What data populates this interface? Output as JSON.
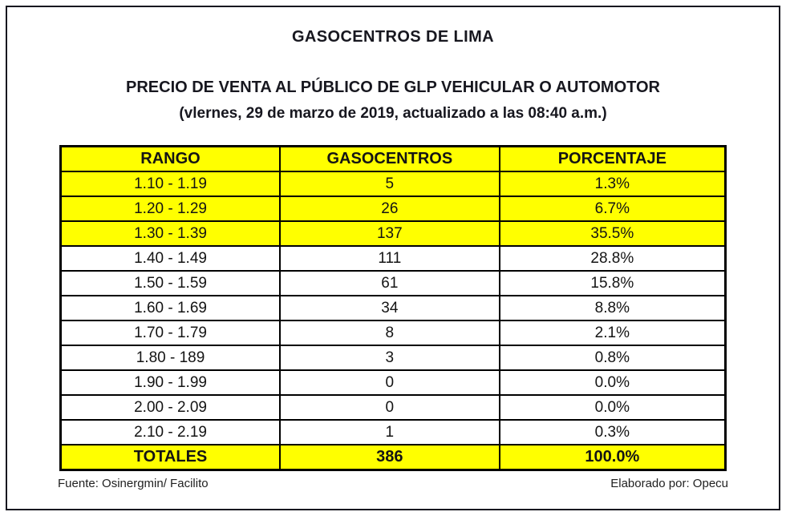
{
  "header": {
    "title": "GASOCENTROS DE LIMA",
    "subtitle": "PRECIO DE VENTA AL PÚBLICO DE GLP VEHICULAR O AUTOMOTOR",
    "date_line": "(vlernes, 29 de marzo de 2019, actualizado a las 08:40 a.m.)"
  },
  "colors": {
    "highlight": "#FFFF00",
    "border": "#000000",
    "text": "#1A1A1A"
  },
  "chart_data": {
    "type": "table",
    "title": "GASOCENTROS DE LIMA",
    "columns": [
      "RANGO",
      "GASOCENTROS",
      "PORCENTAJE"
    ],
    "rows": [
      {
        "cells": [
          "1.10 - 1.19",
          "5",
          "1.3%"
        ],
        "highlight": true,
        "is_total": false
      },
      {
        "cells": [
          "1.20 - 1.29",
          "26",
          "6.7%"
        ],
        "highlight": true,
        "is_total": false
      },
      {
        "cells": [
          "1.30 - 1.39",
          "137",
          "35.5%"
        ],
        "highlight": true,
        "is_total": false
      },
      {
        "cells": [
          "1.40 - 1.49",
          "111",
          "28.8%"
        ],
        "highlight": false,
        "is_total": false
      },
      {
        "cells": [
          "1.50 - 1.59",
          "61",
          "15.8%"
        ],
        "highlight": false,
        "is_total": false
      },
      {
        "cells": [
          "1.60 - 1.69",
          "34",
          "8.8%"
        ],
        "highlight": false,
        "is_total": false
      },
      {
        "cells": [
          "1.70 - 1.79",
          "8",
          "2.1%"
        ],
        "highlight": false,
        "is_total": false
      },
      {
        "cells": [
          "1.80 - 189",
          "3",
          "0.8%"
        ],
        "highlight": false,
        "is_total": false
      },
      {
        "cells": [
          "1.90 - 1.99",
          "0",
          "0.0%"
        ],
        "highlight": false,
        "is_total": false
      },
      {
        "cells": [
          "2.00 - 2.09",
          "0",
          "0.0%"
        ],
        "highlight": false,
        "is_total": false
      },
      {
        "cells": [
          "2.10 - 2.19",
          "1",
          "0.3%"
        ],
        "highlight": false,
        "is_total": false
      },
      {
        "cells": [
          "TOTALES",
          "386",
          "100.0%"
        ],
        "highlight": true,
        "is_total": true
      }
    ]
  },
  "footer": {
    "source": "Fuente: Osinergmin/ Facilito",
    "elaborated_by": "Elaborado por: Opecu"
  }
}
